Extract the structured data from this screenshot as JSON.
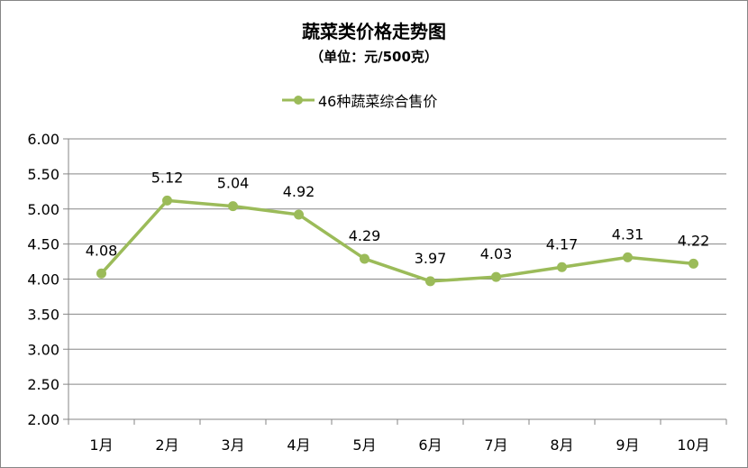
{
  "chart_data": {
    "type": "line",
    "title": "蔬菜类价格走势图",
    "subtitle": "（单位：元/500克）",
    "categories": [
      "1月",
      "2月",
      "3月",
      "4月",
      "5月",
      "6月",
      "7月",
      "8月",
      "9月",
      "10月"
    ],
    "series": [
      {
        "name": "46种蔬菜综合售价",
        "values": [
          4.08,
          5.12,
          5.04,
          4.92,
          4.29,
          3.97,
          4.03,
          4.17,
          4.31,
          4.22
        ],
        "color": "#9BBB59"
      }
    ],
    "data_labels": [
      "4.08",
      "5.12",
      "5.04",
      "4.92",
      "4.29",
      "3.97",
      "4.03",
      "4.17",
      "4.31",
      "4.22"
    ],
    "ylim": [
      2.0,
      6.0
    ],
    "yticks": [
      "2.00",
      "2.50",
      "3.00",
      "3.50",
      "4.00",
      "4.50",
      "5.00",
      "5.50",
      "6.00"
    ],
    "grid": true,
    "legend_position": "top"
  }
}
